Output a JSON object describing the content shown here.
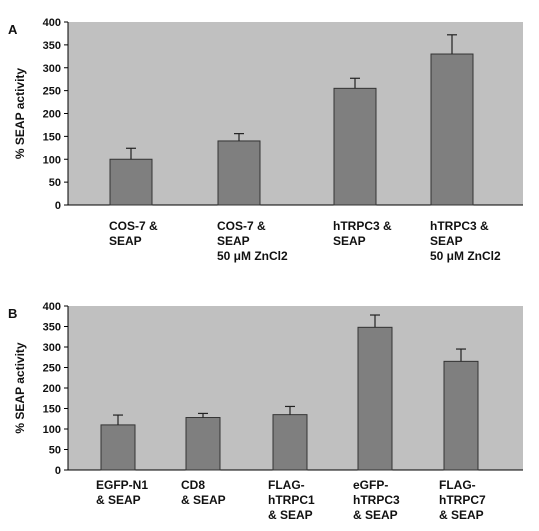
{
  "chart_data": [
    {
      "type": "bar",
      "panel": "A",
      "ylabel": "% SEAP activity",
      "ylim": [
        0,
        400
      ],
      "yticks": [
        0,
        50,
        100,
        150,
        200,
        250,
        300,
        350,
        400
      ],
      "grid": false,
      "plot_background": "#c0c0c0",
      "bar_color": "#7f7f7f",
      "categories": [
        [
          "COS-7 &",
          "SEAP"
        ],
        [
          "COS-7 &",
          "SEAP",
          "50 μM ZnCl2"
        ],
        [
          "hTRPC3 &",
          "SEAP"
        ],
        [
          "hTRPC3 &",
          "SEAP",
          "50 μM ZnCl2"
        ]
      ],
      "values": [
        100,
        140,
        255,
        330
      ],
      "errors": [
        24,
        16,
        22,
        42
      ]
    },
    {
      "type": "bar",
      "panel": "B",
      "ylabel": "% SEAP activity",
      "ylim": [
        0,
        400
      ],
      "yticks": [
        0,
        50,
        100,
        150,
        200,
        250,
        300,
        350,
        400
      ],
      "grid": false,
      "plot_background": "#c0c0c0",
      "bar_color": "#7f7f7f",
      "categories": [
        [
          "EGFP-N1",
          "& SEAP"
        ],
        [
          "CD8",
          "& SEAP"
        ],
        [
          "FLAG-",
          "hTRPC1",
          "& SEAP"
        ],
        [
          "eGFP-",
          "hTRPC3",
          "& SEAP"
        ],
        [
          "FLAG-",
          "hTRPC7",
          "& SEAP"
        ]
      ],
      "values": [
        110,
        128,
        135,
        348,
        265
      ],
      "errors": [
        24,
        10,
        20,
        30,
        30
      ]
    }
  ]
}
